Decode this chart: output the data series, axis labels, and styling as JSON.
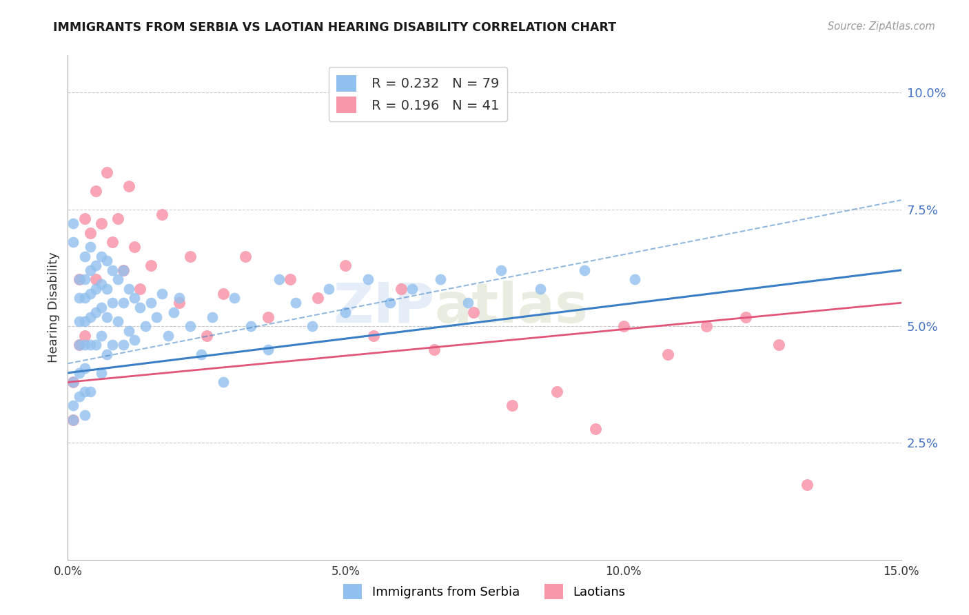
{
  "title": "IMMIGRANTS FROM SERBIA VS LAOTIAN HEARING DISABILITY CORRELATION CHART",
  "source": "Source: ZipAtlas.com",
  "ylabel": "Hearing Disability",
  "xmin": 0.0,
  "xmax": 0.15,
  "ymin": 0.0,
  "ymax": 0.108,
  "yticks": [
    0.025,
    0.05,
    0.075,
    0.1
  ],
  "ytick_labels": [
    "2.5%",
    "5.0%",
    "7.5%",
    "10.0%"
  ],
  "xticks": [
    0.0,
    0.05,
    0.1,
    0.15
  ],
  "xtick_labels": [
    "0.0%",
    "5.0%",
    "10.0%",
    "15.0%"
  ],
  "serbia_color": "#92C0EE",
  "laotian_color": "#F896AA",
  "serbia_R": 0.232,
  "serbia_N": 79,
  "laotian_R": 0.196,
  "laotian_N": 41,
  "serbia_line_color": "#3A7EC6",
  "laotian_line_color": "#E05578",
  "background_color": "#FFFFFF",
  "watermark_text": "ZIP",
  "watermark_text2": "atlas",
  "serbia_x": [
    0.001,
    0.001,
    0.001,
    0.001,
    0.001,
    0.002,
    0.002,
    0.002,
    0.002,
    0.002,
    0.002,
    0.003,
    0.003,
    0.003,
    0.003,
    0.003,
    0.003,
    0.003,
    0.003,
    0.004,
    0.004,
    0.004,
    0.004,
    0.004,
    0.004,
    0.005,
    0.005,
    0.005,
    0.005,
    0.006,
    0.006,
    0.006,
    0.006,
    0.006,
    0.007,
    0.007,
    0.007,
    0.007,
    0.008,
    0.008,
    0.008,
    0.009,
    0.009,
    0.01,
    0.01,
    0.01,
    0.011,
    0.011,
    0.012,
    0.012,
    0.013,
    0.014,
    0.015,
    0.016,
    0.017,
    0.018,
    0.019,
    0.02,
    0.022,
    0.024,
    0.026,
    0.028,
    0.03,
    0.033,
    0.036,
    0.038,
    0.041,
    0.044,
    0.047,
    0.05,
    0.054,
    0.058,
    0.062,
    0.067,
    0.072,
    0.078,
    0.085,
    0.093,
    0.102
  ],
  "serbia_y": [
    0.072,
    0.068,
    0.038,
    0.033,
    0.03,
    0.06,
    0.056,
    0.051,
    0.046,
    0.04,
    0.035,
    0.065,
    0.06,
    0.056,
    0.051,
    0.046,
    0.041,
    0.036,
    0.031,
    0.067,
    0.062,
    0.057,
    0.052,
    0.046,
    0.036,
    0.063,
    0.058,
    0.053,
    0.046,
    0.065,
    0.059,
    0.054,
    0.048,
    0.04,
    0.064,
    0.058,
    0.052,
    0.044,
    0.062,
    0.055,
    0.046,
    0.06,
    0.051,
    0.062,
    0.055,
    0.046,
    0.058,
    0.049,
    0.056,
    0.047,
    0.054,
    0.05,
    0.055,
    0.052,
    0.057,
    0.048,
    0.053,
    0.056,
    0.05,
    0.044,
    0.052,
    0.038,
    0.056,
    0.05,
    0.045,
    0.06,
    0.055,
    0.05,
    0.058,
    0.053,
    0.06,
    0.055,
    0.058,
    0.06,
    0.055,
    0.062,
    0.058,
    0.062,
    0.06
  ],
  "laotian_x": [
    0.001,
    0.001,
    0.002,
    0.002,
    0.003,
    0.003,
    0.004,
    0.005,
    0.005,
    0.006,
    0.007,
    0.008,
    0.009,
    0.01,
    0.011,
    0.012,
    0.013,
    0.015,
    0.017,
    0.02,
    0.022,
    0.025,
    0.028,
    0.032,
    0.036,
    0.04,
    0.045,
    0.05,
    0.055,
    0.06,
    0.066,
    0.073,
    0.08,
    0.088,
    0.095,
    0.1,
    0.108,
    0.115,
    0.122,
    0.128,
    0.133
  ],
  "laotian_y": [
    0.038,
    0.03,
    0.06,
    0.046,
    0.073,
    0.048,
    0.07,
    0.079,
    0.06,
    0.072,
    0.083,
    0.068,
    0.073,
    0.062,
    0.08,
    0.067,
    0.058,
    0.063,
    0.074,
    0.055,
    0.065,
    0.048,
    0.057,
    0.065,
    0.052,
    0.06,
    0.056,
    0.063,
    0.048,
    0.058,
    0.045,
    0.053,
    0.033,
    0.036,
    0.028,
    0.05,
    0.044,
    0.05,
    0.052,
    0.046,
    0.016
  ],
  "serbia_line_x0": 0.0,
  "serbia_line_x1": 0.15,
  "serbia_line_y0": 0.04,
  "serbia_line_y1": 0.062,
  "laotian_line_y0": 0.038,
  "laotian_line_y1": 0.055,
  "dash_line_y0": 0.042,
  "dash_line_y1": 0.077
}
